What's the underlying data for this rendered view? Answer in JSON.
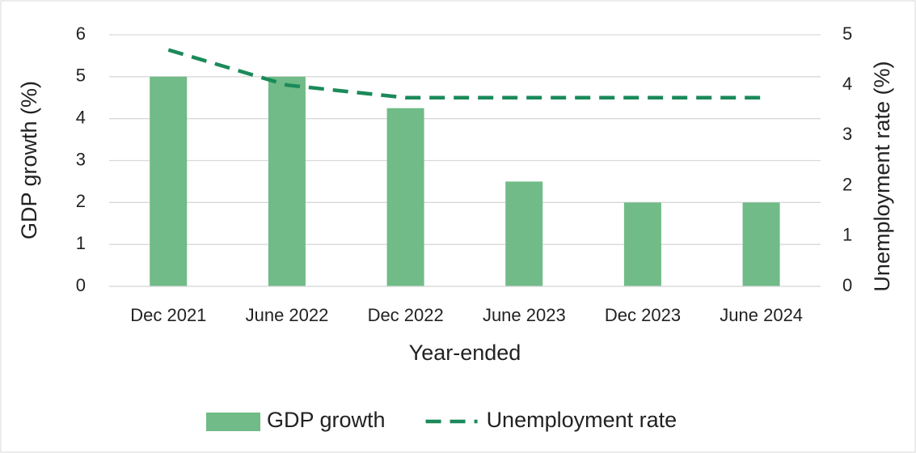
{
  "chart_data": {
    "type": "bar",
    "x_label": "Year-ended",
    "y_label": "GDP growth (%)",
    "y2_label": "Unemployment rate (%)",
    "categories": [
      "Dec 2021",
      "June 2022",
      "Dec 2022",
      "June 2023",
      "Dec 2023",
      "June 2024"
    ],
    "series": [
      {
        "name": "GDP growth",
        "type": "bar",
        "color": "#70bb87",
        "values": [
          5,
          5,
          4.25,
          2.5,
          2,
          2
        ]
      },
      {
        "name": "Unemployment rate",
        "type": "line",
        "line_style": "dashed",
        "axis": "y2",
        "color": "#1a8a5a",
        "values": [
          4.7,
          4.0,
          3.75,
          3.75,
          3.75,
          3.75
        ]
      }
    ],
    "ylim": [
      0,
      6
    ],
    "yticks": [
      0,
      1,
      2,
      3,
      4,
      5,
      6
    ],
    "y2lim": [
      0,
      5
    ],
    "y2ticks": [
      0,
      1,
      2,
      3,
      4,
      5
    ],
    "grid": true,
    "legend": "bottom"
  }
}
